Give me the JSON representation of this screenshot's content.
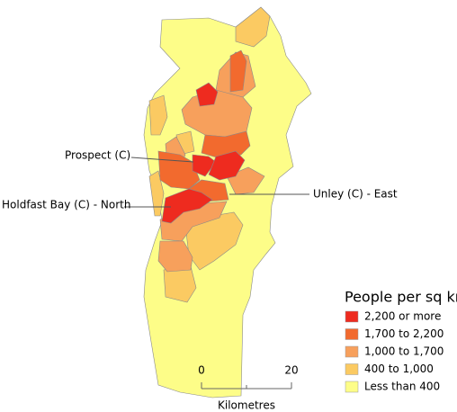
{
  "map": {
    "annotations": [
      "Prospect (C)",
      "Holdfast Bay (C) - North",
      "Unley (C) - East"
    ],
    "legend": {
      "title": "People per sq km",
      "items": [
        {
          "label": "2,200 or more",
          "color": "#ee2b1f"
        },
        {
          "label": "1,700 to 2,200",
          "color": "#f26a2e"
        },
        {
          "label": "1,000 to 1,700",
          "color": "#f7a05c"
        },
        {
          "label": "400 to 1,000",
          "color": "#fbca62"
        },
        {
          "label": "Less than 400",
          "color": "#fdfd88"
        }
      ]
    },
    "scale_bar": {
      "start": "0",
      "end": "20",
      "unit": "Kilometres"
    }
  }
}
